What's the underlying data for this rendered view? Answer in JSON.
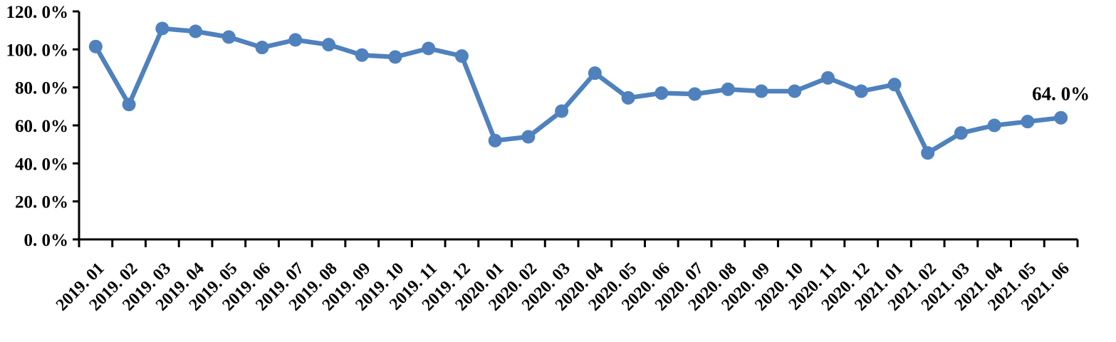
{
  "chart_data": {
    "type": "line",
    "title": "",
    "categories": [
      "2019. 01",
      "2019. 02",
      "2019. 03",
      "2019. 04",
      "2019. 05",
      "2019. 06",
      "2019. 07",
      "2019. 08",
      "2019. 09",
      "2019. 10",
      "2019. 11",
      "2019. 12",
      "2020. 01",
      "2020. 02",
      "2020. 03",
      "2020. 04",
      "2020. 05",
      "2020. 06",
      "2020. 07",
      "2020. 08",
      "2020. 09",
      "2020. 10",
      "2020. 11",
      "2020. 12",
      "2021. 01",
      "2021. 02",
      "2021. 03",
      "2021. 04",
      "2021. 05",
      "2021. 06"
    ],
    "values": [
      101.5,
      71,
      111,
      109.5,
      106.5,
      101,
      105,
      102.5,
      97,
      96,
      100.5,
      96.5,
      52,
      54,
      67.5,
      87.5,
      74.5,
      77,
      76.5,
      79,
      78,
      78,
      85,
      78,
      81.5,
      45.5,
      56,
      60,
      62,
      64
    ],
    "xlabel": "",
    "ylabel": "",
    "ylim": [
      0,
      120
    ],
    "y_tick_step": 20,
    "y_tick_labels": [
      "0. 0%",
      "20. 0%",
      "40. 0%",
      "60. 0%",
      "80. 0%",
      "100. 0%",
      "120. 0%"
    ],
    "grid": false,
    "legend_position": "none",
    "annotation": {
      "text": "64. 0%",
      "category": "2021. 06",
      "value": 64.0
    },
    "colors": {
      "line": "#4F81BD",
      "marker": "#4F81BD",
      "axis": "#000000",
      "text": "#000000",
      "background": "#FFFFFF"
    }
  }
}
